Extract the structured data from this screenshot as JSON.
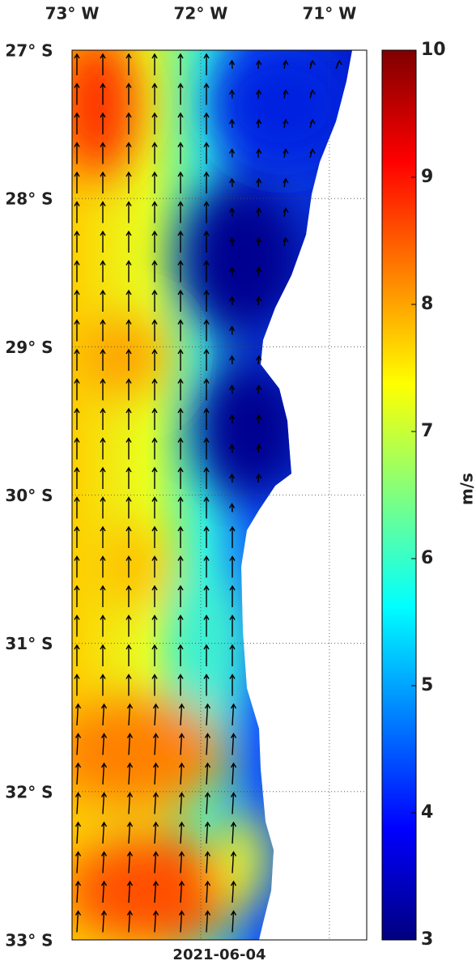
{
  "map": {
    "lon_axis": {
      "lim": [
        -73,
        -70.71
      ],
      "ticks": [
        {
          "value": -73,
          "label": "73° W"
        },
        {
          "value": -72,
          "label": "72° W"
        },
        {
          "value": -71,
          "label": "71° W"
        }
      ]
    },
    "lat_axis": {
      "lim": [
        -33,
        -27
      ],
      "ticks": [
        {
          "value": -27,
          "label": "27° S"
        },
        {
          "value": -28,
          "label": "28° S"
        },
        {
          "value": -29,
          "label": "29° S"
        },
        {
          "value": -30,
          "label": "30° S"
        },
        {
          "value": -31,
          "label": "31° S"
        },
        {
          "value": -32,
          "label": "32° S"
        },
        {
          "value": -33,
          "label": "33° S"
        }
      ]
    },
    "colorbar": {
      "label": "m/s",
      "lim": [
        3,
        10
      ],
      "ticks": [
        3,
        4,
        5,
        6,
        7,
        8,
        9,
        10
      ]
    },
    "date": "2021-06-04"
  }
}
